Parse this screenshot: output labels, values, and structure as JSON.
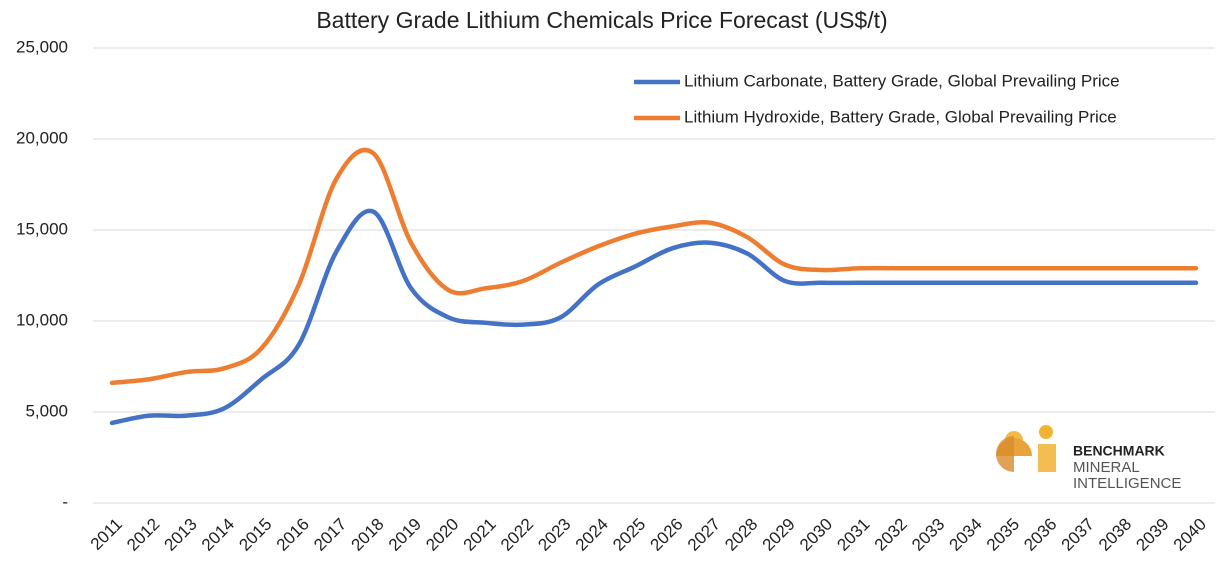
{
  "chart_data": {
    "type": "line",
    "title": "Battery Grade Lithium Chemicals Price Forecast (US$/t)",
    "categories": [
      "2011",
      "2012",
      "2013",
      "2014",
      "2015",
      "2016",
      "2017",
      "2018",
      "2019",
      "2020",
      "2021",
      "2022",
      "2023",
      "2024",
      "2025",
      "2026",
      "2027",
      "2028",
      "2029",
      "2030",
      "2031",
      "2032",
      "2033",
      "2034",
      "2035",
      "2036",
      "2037",
      "2038",
      "2039",
      "2040"
    ],
    "series": [
      {
        "name": "Lithium Carbonate, Battery Grade, Global Prevailing Price",
        "color": "#4472c4",
        "values": [
          4400,
          4800,
          4800,
          5200,
          6800,
          8700,
          13800,
          16000,
          11800,
          10200,
          9900,
          9800,
          10200,
          12000,
          13000,
          14000,
          14300,
          13700,
          12200,
          12100,
          12100,
          12100,
          12100,
          12100,
          12100,
          12100,
          12100,
          12100,
          12100,
          12100
        ]
      },
      {
        "name": "Lithium Hydroxide, Battery Grade, Global Prevailing Price",
        "color": "#ed7d31",
        "values": [
          6600,
          6800,
          7200,
          7400,
          8500,
          12000,
          17800,
          19200,
          14300,
          11700,
          11800,
          12200,
          13200,
          14100,
          14800,
          15200,
          15400,
          14600,
          13100,
          12800,
          12900,
          12900,
          12900,
          12900,
          12900,
          12900,
          12900,
          12900,
          12900,
          12900
        ]
      }
    ],
    "ylim": [
      0,
      25000
    ],
    "yticks": [
      {
        "value": 0,
        "label": "-"
      },
      {
        "value": 5000,
        "label": "5,000"
      },
      {
        "value": 10000,
        "label": "10,000"
      },
      {
        "value": 15000,
        "label": "15,000"
      },
      {
        "value": 20000,
        "label": "20,000"
      },
      {
        "value": 25000,
        "label": "25,000"
      }
    ],
    "grid": true,
    "legend": "upper right"
  },
  "logo": {
    "lines": [
      "BENCHMARK",
      "MINERAL",
      "INTELLIGENCE"
    ]
  }
}
